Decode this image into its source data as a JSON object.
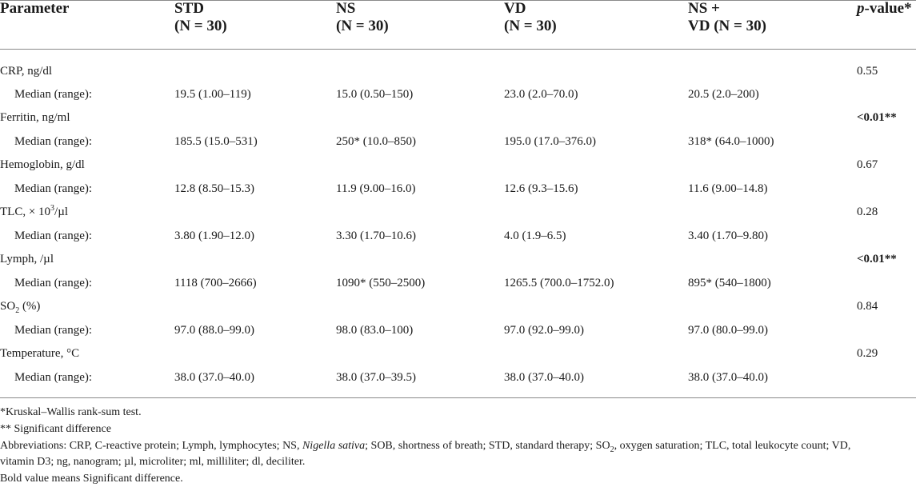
{
  "headers": {
    "parameter": "Parameter",
    "std": [
      "STD",
      "(N = 30)"
    ],
    "ns": [
      "NS",
      "(N = 30)"
    ],
    "vd": [
      "VD",
      "(N = 30)"
    ],
    "nsvd": [
      "NS +",
      "VD (N = 30)"
    ],
    "pvalue_italic": "p",
    "pvalue_rest": "-value*"
  },
  "rows": [
    {
      "param": "CRP, ng/dl",
      "pvalue": "0.55",
      "bold": false,
      "sub": "Median (range):",
      "std": "19.5 (1.00–119)",
      "ns": "15.0 (0.50–150)",
      "vd": "23.0 (2.0–70.0)",
      "nsvd": "20.5 (2.0–200)"
    },
    {
      "param": "Ferritin, ng/ml",
      "pvalue": "<0.01**",
      "bold": true,
      "sub": "Median (range):",
      "std": "185.5 (15.0–531)",
      "ns": "250* (10.0–850)",
      "vd": "195.0 (17.0–376.0)",
      "nsvd": "318* (64.0–1000)"
    },
    {
      "param": "Hemoglobin, g/dl",
      "pvalue": "0.67",
      "bold": false,
      "sub": "Median (range):",
      "std": "12.8 (8.50–15.3)",
      "ns": "11.9 (9.00–16.0)",
      "vd": "12.6 (9.3–15.6)",
      "nsvd": "11.6 (9.00–14.8)"
    },
    {
      "param_a": "TLC, × 10",
      "param_sup": "3",
      "param_b": "/µl",
      "pvalue": "0.28",
      "bold": false,
      "sub": "Median (range):",
      "std": "3.80 (1.90–12.0)",
      "ns": "3.30 (1.70–10.6)",
      "vd": "4.0 (1.9–6.5)",
      "nsvd": "3.40 (1.70–9.80)"
    },
    {
      "param": "Lymph, /µl",
      "pvalue": "<0.01**",
      "bold": true,
      "sub": "Median (range):",
      "std": "1118 (700–2666)",
      "ns": "1090* (550–2500)",
      "vd": "1265.5 (700.0–1752.0)",
      "nsvd": "895* (540–1800)"
    },
    {
      "param_a": "SO",
      "param_subscript": "2",
      "param_b": " (%)",
      "pvalue": "0.84",
      "bold": false,
      "sub": "Median (range):",
      "std": "97.0 (88.0–99.0)",
      "ns": "98.0 (83.0–100)",
      "vd": "97.0 (92.0–99.0)",
      "nsvd": "97.0 (80.0–99.0)"
    },
    {
      "param": "Temperature, °C",
      "pvalue": "0.29",
      "bold": false,
      "sub": "Median (range):",
      "std": "38.0 (37.0–40.0)",
      "ns": "38.0 (37.0–39.5)",
      "vd": "38.0 (37.0–40.0)",
      "nsvd": "38.0 (37.0–40.0)"
    }
  ],
  "footnotes": {
    "f1": "*Kruskal–Wallis rank-sum test.",
    "f2": "** Significant difference",
    "abbr_a": "Abbreviations: CRP, C-reactive protein; Lymph, lymphocytes; NS, ",
    "abbr_italic": "Nigella sativa",
    "abbr_b": "; SOB, shortness of breath; STD, standard therapy; SO",
    "abbr_sub": "2",
    "abbr_c": ", oxygen saturation; TLC, total leukocyte count; VD,",
    "abbr_line2": "vitamin D3; ng, nanogram; µl, microliter; ml, milliliter; dl, deciliter.",
    "f4": "Bold value means Significant difference."
  }
}
